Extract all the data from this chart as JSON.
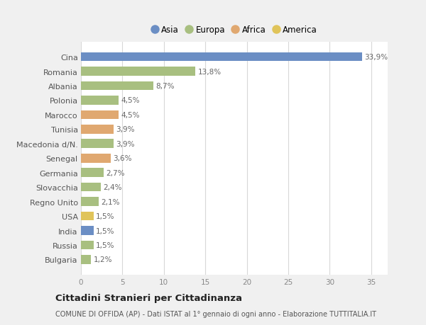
{
  "categories": [
    "Bulgaria",
    "Russia",
    "India",
    "USA",
    "Regno Unito",
    "Slovacchia",
    "Germania",
    "Senegal",
    "Macedonia d/N.",
    "Tunisia",
    "Marocco",
    "Polonia",
    "Albania",
    "Romania",
    "Cina"
  ],
  "values": [
    1.2,
    1.5,
    1.5,
    1.5,
    2.1,
    2.4,
    2.7,
    3.6,
    3.9,
    3.9,
    4.5,
    4.5,
    8.7,
    13.8,
    33.9
  ],
  "labels": [
    "1,2%",
    "1,5%",
    "1,5%",
    "1,5%",
    "2,1%",
    "2,4%",
    "2,7%",
    "3,6%",
    "3,9%",
    "3,9%",
    "4,5%",
    "4,5%",
    "8,7%",
    "13,8%",
    "33,9%"
  ],
  "colors": [
    "#a8bf80",
    "#a8bf80",
    "#6b8ec4",
    "#e0c45a",
    "#a8bf80",
    "#a8bf80",
    "#a8bf80",
    "#e0a870",
    "#a8bf80",
    "#e0a870",
    "#e0a870",
    "#a8bf80",
    "#a8bf80",
    "#a8bf80",
    "#6b8ec4"
  ],
  "legend_labels": [
    "Asia",
    "Europa",
    "Africa",
    "America"
  ],
  "legend_colors": [
    "#6b8ec4",
    "#a8bf80",
    "#e0a870",
    "#e0c45a"
  ],
  "title": "Cittadini Stranieri per Cittadinanza",
  "subtitle": "COMUNE DI OFFIDA (AP) - Dati ISTAT al 1° gennaio di ogni anno - Elaborazione TUTTITALIA.IT",
  "xlim": [
    0,
    37
  ],
  "xticks": [
    0,
    5,
    10,
    15,
    20,
    25,
    30,
    35
  ],
  "bg_color": "#f0f0f0",
  "bar_bg_color": "#ffffff",
  "grid_color": "#d8d8d8",
  "label_color": "#666666",
  "tick_color": "#888888"
}
